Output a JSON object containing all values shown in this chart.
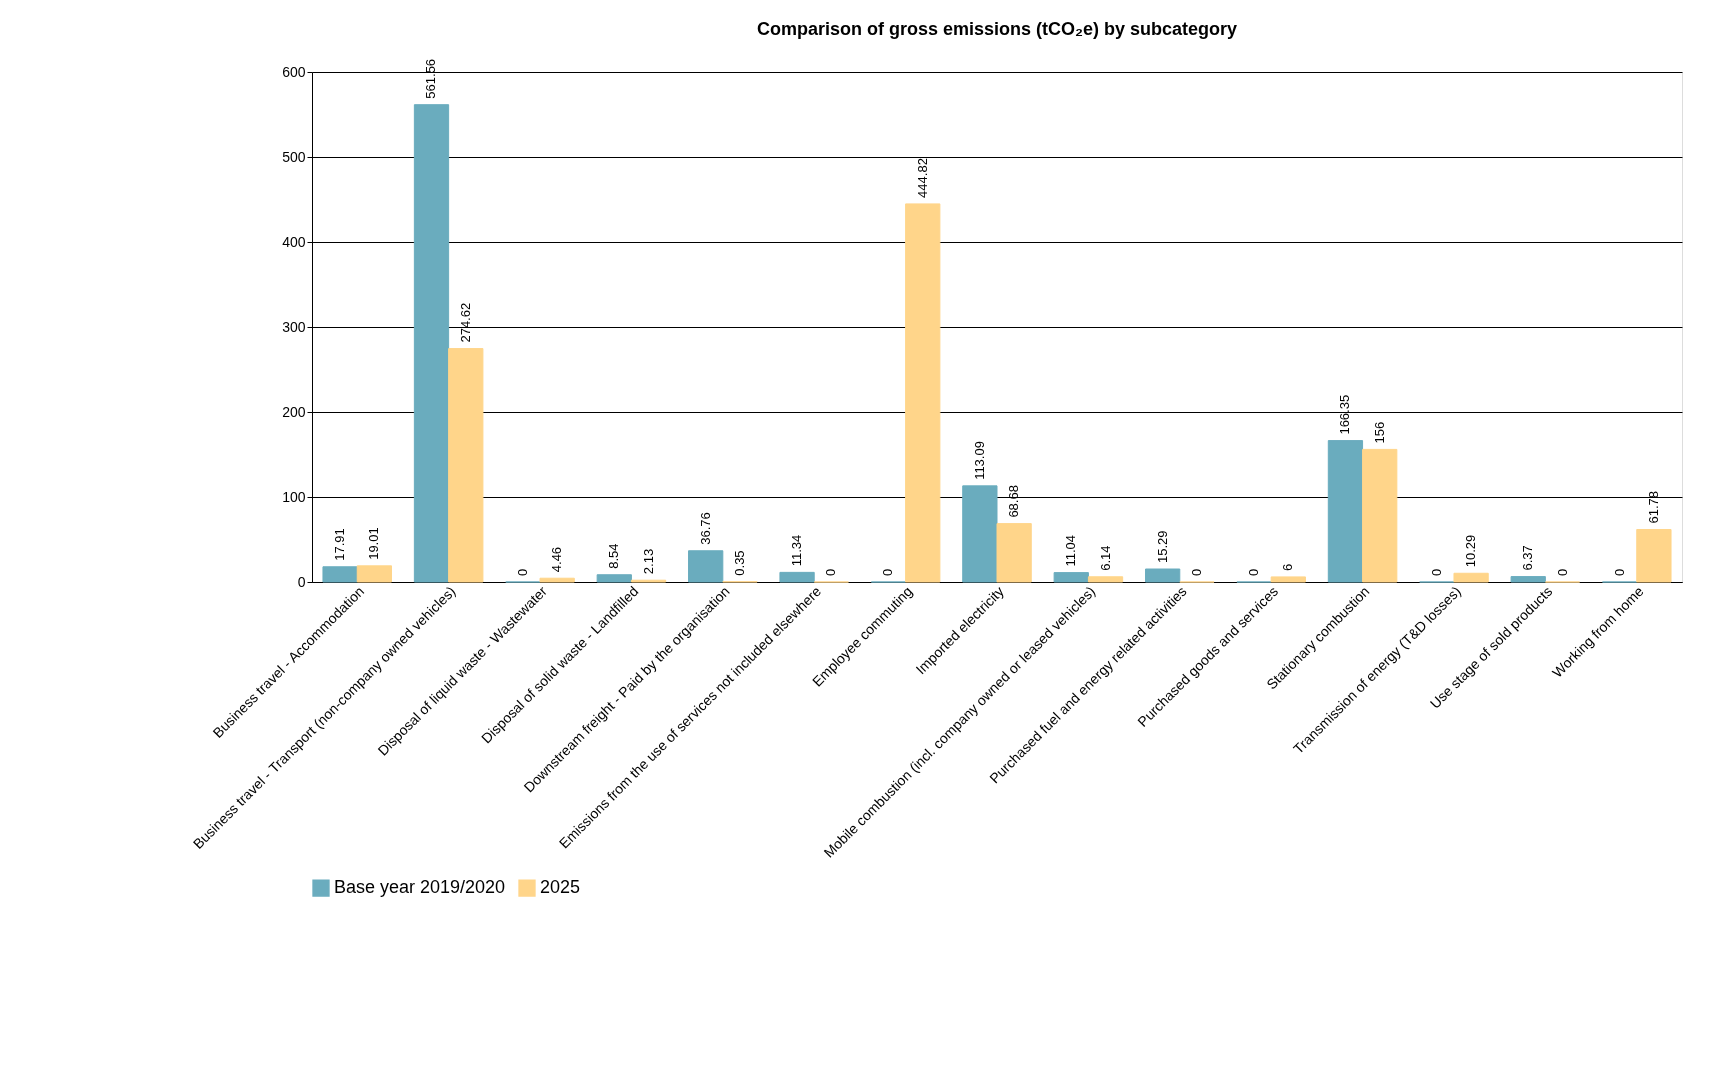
{
  "chart_data": {
    "type": "bar",
    "title": "Comparison of gross emissions (tCO₂e) by subcategory",
    "categories": [
      "Business travel - Accommodation",
      "Business travel - Transport (non-company owned vehicles)",
      "Disposal of liquid waste - Wastewater",
      "Disposal of solid waste - Landfilled",
      "Downstream freight - Paid by the organisation",
      "Emissions from the use of services not included elsewhere",
      "Employee commuting",
      "Imported electricity",
      "Mobile combustion (incl. company owned or leased vehicles)",
      "Purchased fuel and energy related activities",
      "Purchased goods and services",
      "Stationary combustion",
      "Transmission of energy (T&D losses)",
      "Use stage of sold products",
      "Working from home"
    ],
    "series": [
      {
        "name": "Base year 2019/2020",
        "color": "#6aacbe",
        "values": [
          17.91,
          561.56,
          0,
          8.54,
          36.76,
          11.34,
          0,
          113.09,
          11.04,
          15.29,
          0,
          166.35,
          0,
          6.37,
          0
        ]
      },
      {
        "name": "2025",
        "color": "#ffd58a",
        "values": [
          19.01,
          274.62,
          4.46,
          2.13,
          0.35,
          0,
          444.82,
          68.68,
          6.14,
          0,
          6,
          156,
          10.29,
          0,
          61.78
        ]
      }
    ],
    "ylim": [
      0,
      600
    ],
    "yticks": [
      0,
      100,
      200,
      300,
      400,
      500,
      600
    ],
    "grid": "y",
    "legend": "bottom",
    "data_labels": true
  }
}
